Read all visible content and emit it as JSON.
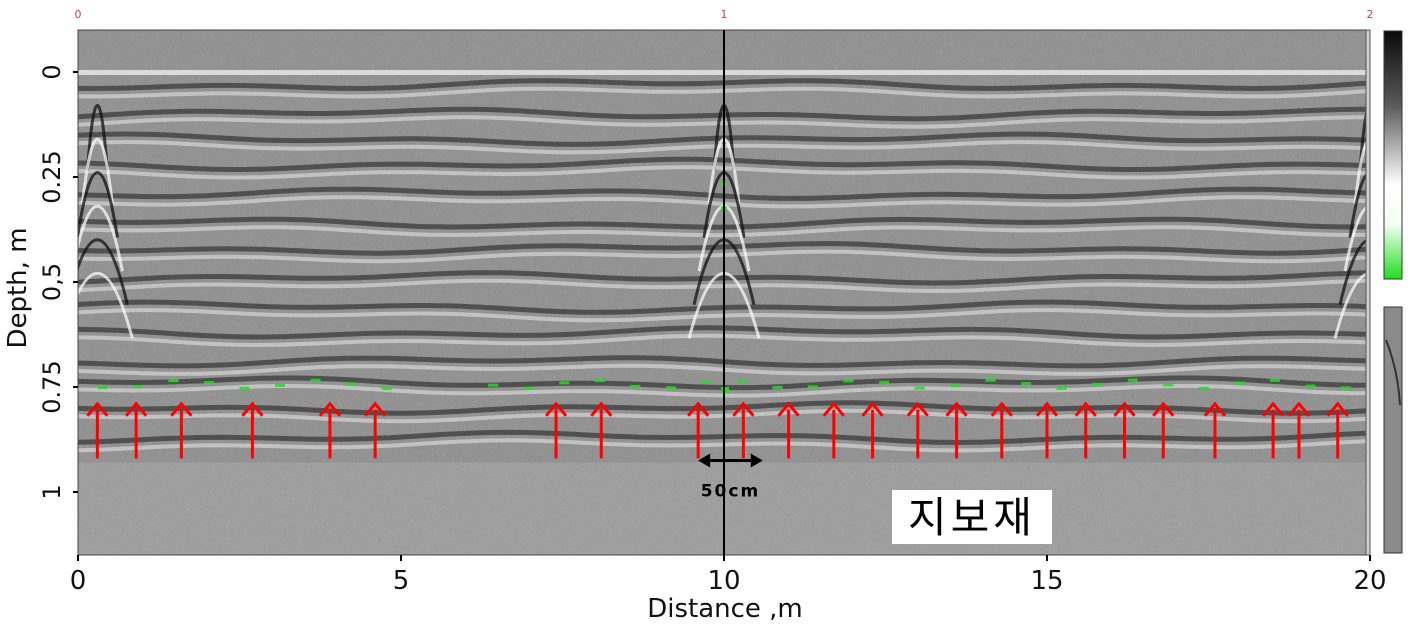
{
  "chart_data": {
    "type": "heatmap",
    "title": "",
    "xlabel": "Distance ,m",
    "ylabel": "Depth, m",
    "xlim": [
      0,
      20
    ],
    "ylim": [
      -0.1,
      1.15
    ],
    "x_ticks": [
      {
        "value": 0,
        "label": "0"
      },
      {
        "value": 5,
        "label": "5"
      },
      {
        "value": 10,
        "label": "10"
      },
      {
        "value": 15,
        "label": "15"
      },
      {
        "value": 20,
        "label": "20"
      }
    ],
    "y_ticks": [
      {
        "value": 0,
        "label": "0"
      },
      {
        "value": 0.25,
        "label": "0.25"
      },
      {
        "value": 0.5,
        "label": "0,5"
      },
      {
        "value": 0.75,
        "label": "0.75"
      },
      {
        "value": 1,
        "label": "1"
      }
    ],
    "top_markers": [
      {
        "value": 0,
        "label": "0"
      },
      {
        "value": 10,
        "label": "1"
      },
      {
        "value": 20,
        "label": "2"
      }
    ],
    "marker_line_x": 10,
    "arrow_x": [
      0.3,
      0.9,
      1.6,
      2.7,
      3.9,
      4.6,
      7.4,
      8.1,
      9.6,
      10.3,
      11.0,
      11.7,
      12.3,
      13.0,
      13.6,
      14.3,
      15.0,
      15.6,
      16.2,
      16.8,
      17.6,
      18.5,
      18.9,
      19.5
    ],
    "arrow_tip_depth": 0.79,
    "arrow_tail_depth": 0.92,
    "arrow_color": "#ff0000",
    "scale_annotation": {
      "label": "50cm",
      "x_from": 9.6,
      "x_to": 10.6,
      "depth": 0.925
    },
    "region_label": "지보재",
    "reflector_bands_depth": [
      0.03,
      0.1,
      0.16,
      0.22,
      0.29,
      0.36,
      0.42,
      0.49,
      0.56,
      0.62,
      0.69,
      0.74,
      0.8,
      0.87
    ],
    "hyperbola_apex_x": [
      0.3,
      10.0,
      20.0
    ],
    "green_highlight_color": "#22dd22",
    "colors": {
      "gray_base": "#8e8e8e",
      "tick_red": "#d04040"
    }
  },
  "colorbar": {
    "top_gradient": [
      "#111111",
      "#ffffff",
      "#22dd22"
    ],
    "bottom_fill": "#8a8a8a"
  }
}
